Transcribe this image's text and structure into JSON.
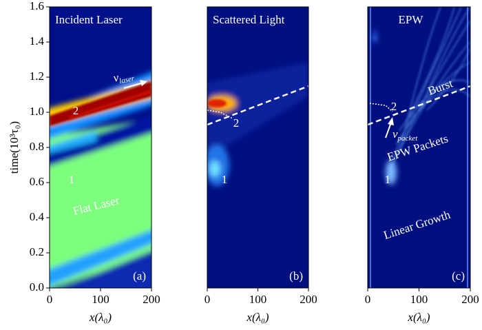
{
  "chart_data": [
    {
      "type": "heatmap",
      "title": "Incident Laser",
      "panel_label": "(a)",
      "x_label": "x(λ₀)",
      "y_label": "time(10³τ₀)",
      "xlim": [
        0,
        200
      ],
      "ylim": [
        0,
        1.6
      ],
      "xticks": [
        0,
        100,
        200
      ],
      "yticks": [
        {
          "value": 0,
          "label": "0.0"
        },
        {
          "value": 0.2,
          "label": "0.2"
        },
        {
          "value": 0.4,
          "label": "0.4"
        },
        {
          "value": 0.6,
          "label": "0.6"
        },
        {
          "value": 0.8,
          "label": "0.8"
        },
        {
          "value": 1,
          "label": "1.0"
        },
        {
          "value": 1.2,
          "label": "1.2"
        },
        {
          "value": 1.4,
          "label": "1.4"
        },
        {
          "value": 1.6,
          "label": "1.6"
        }
      ],
      "annotations": [
        "2",
        "1",
        "Flat Laser"
      ],
      "velocity": {
        "symbol": "v",
        "subscript": "laser"
      }
    },
    {
      "type": "heatmap",
      "title": "Scattered Light",
      "panel_label": "(b)",
      "x_label": "x(λ₀)",
      "xlim": [
        0,
        200
      ],
      "ylim": [
        0,
        1.6
      ],
      "xticks": [
        0,
        100,
        200
      ],
      "annotations": [
        "2",
        "1"
      ]
    },
    {
      "type": "heatmap",
      "title": "EPW",
      "panel_label": "(c)",
      "x_label": "x(λ₀)",
      "xlim": [
        0,
        200
      ],
      "ylim": [
        0,
        1.6
      ],
      "xticks": [
        0,
        100,
        200
      ],
      "annotations": [
        "Burst",
        "2",
        "EPW Packets",
        "1",
        "Linear Growth"
      ],
      "velocity": {
        "symbol": "v",
        "subscript": "packet"
      }
    }
  ]
}
